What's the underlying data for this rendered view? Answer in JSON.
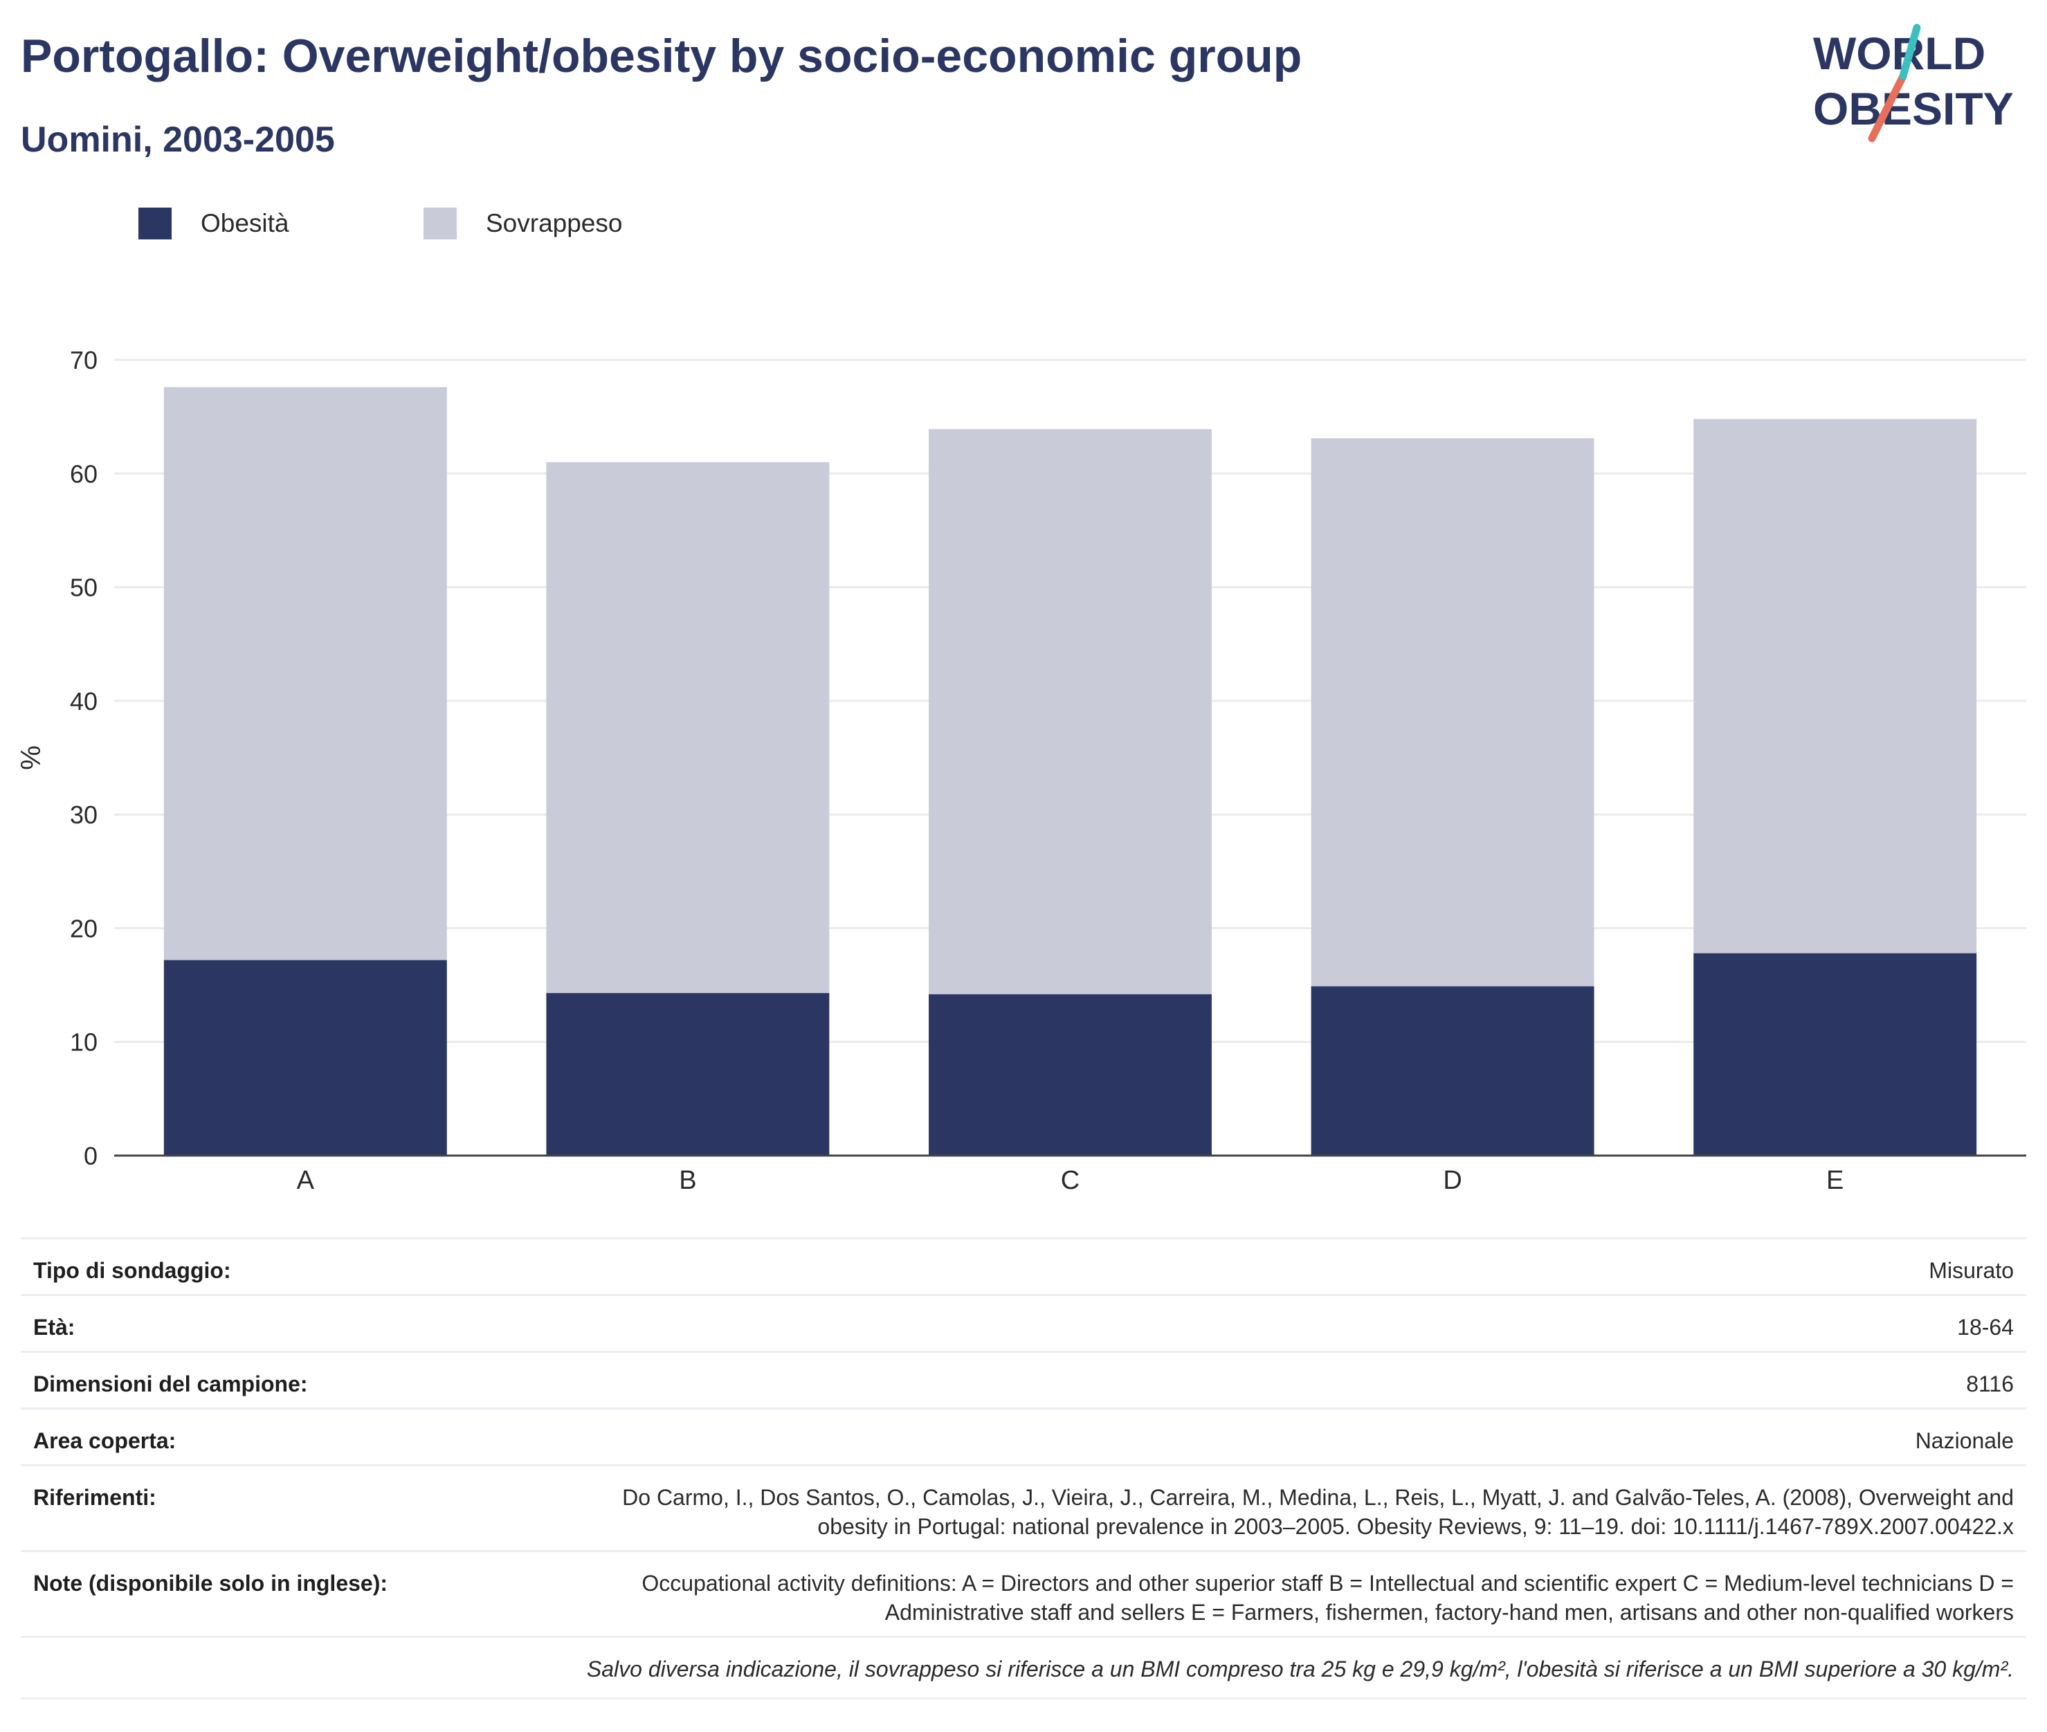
{
  "title": "Portogallo: Overweight/obesity by socio-economic group",
  "subtitle": "Uomini, 2003-2005",
  "logo": {
    "line1": "WORLD",
    "line2": "OBESITY"
  },
  "legend": [
    {
      "label": "Obesità",
      "color": "#2b3663"
    },
    {
      "label": "Sovrappeso",
      "color": "#c9ccd8"
    }
  ],
  "chart_data": {
    "type": "bar",
    "stacked": true,
    "categories": [
      "A",
      "B",
      "C",
      "D",
      "E"
    ],
    "series": [
      {
        "name": "Obesità",
        "color": "#2b3663",
        "values": [
          17.2,
          14.3,
          14.2,
          14.9,
          17.8
        ]
      },
      {
        "name": "Sovrappeso",
        "color": "#c9ccd8",
        "values": [
          50.4,
          46.7,
          49.7,
          48.2,
          47.0
        ]
      }
    ],
    "ylabel": "%",
    "xlabel": "",
    "ylim": [
      0,
      70
    ],
    "yticks": [
      0,
      10,
      20,
      30,
      40,
      50,
      60,
      70
    ],
    "grid": true
  },
  "meta": {
    "rows": [
      {
        "label": "Tipo di sondaggio:",
        "value": "Misurato"
      },
      {
        "label": "Età:",
        "value": "18-64"
      },
      {
        "label": "Dimensioni del campione:",
        "value": "8116"
      },
      {
        "label": "Area coperta:",
        "value": "Nazionale"
      },
      {
        "label": "Riferimenti:",
        "value": "Do Carmo, I., Dos Santos, O., Camolas, J., Vieira, J., Carreira, M., Medina, L., Reis, L., Myatt, J. and Galvão-Teles, A. (2008), Overweight and obesity in Portugal: national prevalence in 2003–2005. Obesity Reviews, 9: 11–19. doi: 10.1111/j.1467-789X.2007.00422.x"
      },
      {
        "label": "Note (disponibile solo in inglese):",
        "value": "Occupational activity definitions: A = Directors and other superior staff B = Intellectual and scientific expert C = Medium-level technicians D = Administrative staff and sellers E = Farmers, fishermen, factory-hand men, artisans and other non-qualified workers"
      }
    ],
    "footnote": "Salvo diversa indicazione, il sovrappeso si riferisce a un BMI compreso tra 25 kg e 29,9 kg/m², l'obesità si riferisce a un BMI superiore a 30 kg/m²."
  }
}
